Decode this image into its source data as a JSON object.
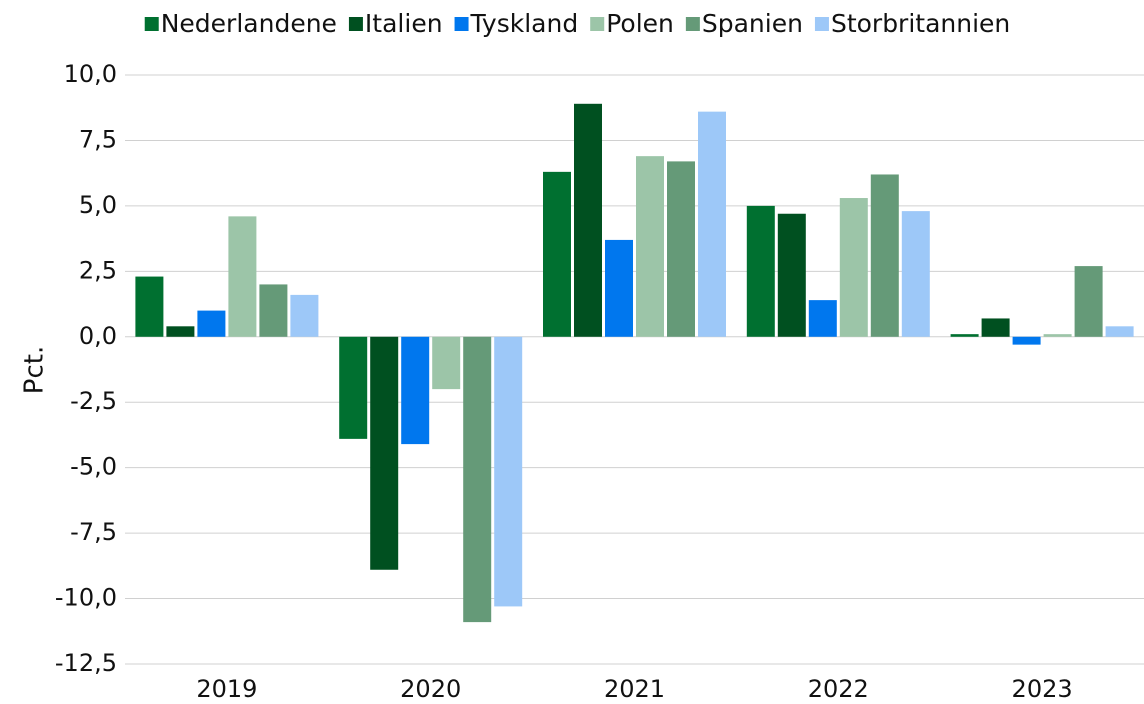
{
  "chart_data": {
    "type": "bar",
    "y_label": "Pct.",
    "categories": [
      "2019",
      "2020",
      "2021",
      "2022",
      "2023"
    ],
    "series": [
      {
        "name": "Nederlandene",
        "color": "#007030",
        "values": [
          2.3,
          -3.9,
          6.3,
          5.0,
          0.1
        ]
      },
      {
        "name": "Italien",
        "color": "#005020",
        "values": [
          0.4,
          -8.9,
          8.9,
          4.7,
          0.7
        ]
      },
      {
        "name": "Tyskland",
        "color": "#0077ee",
        "values": [
          1.0,
          -4.1,
          3.7,
          1.4,
          -0.3
        ]
      },
      {
        "name": "Polen",
        "color": "#9cc5a8",
        "values": [
          4.6,
          -2.0,
          6.9,
          5.3,
          0.1
        ]
      },
      {
        "name": "Spanien",
        "color": "#659a78",
        "values": [
          2.0,
          -10.9,
          6.7,
          6.2,
          2.7
        ]
      },
      {
        "name": "Storbritannien",
        "color": "#9dc8f8",
        "values": [
          1.6,
          -10.3,
          8.6,
          4.8,
          0.4
        ]
      }
    ],
    "ylim": [
      -12.5,
      10.0
    ],
    "yticks": [
      {
        "value": -12.5,
        "label": "-12,5"
      },
      {
        "value": -10,
        "label": "-10,0"
      },
      {
        "value": -7.5,
        "label": "-7,5"
      },
      {
        "value": -5,
        "label": "-5,0"
      },
      {
        "value": -2.5,
        "label": "-2,5"
      },
      {
        "value": 0,
        "label": "0,0"
      },
      {
        "value": 2.5,
        "label": "2,5"
      },
      {
        "value": 5,
        "label": "5,0"
      },
      {
        "value": 7.5,
        "label": "7,5"
      },
      {
        "value": 10,
        "label": "10,0"
      }
    ],
    "grid": true,
    "legend": "top"
  }
}
